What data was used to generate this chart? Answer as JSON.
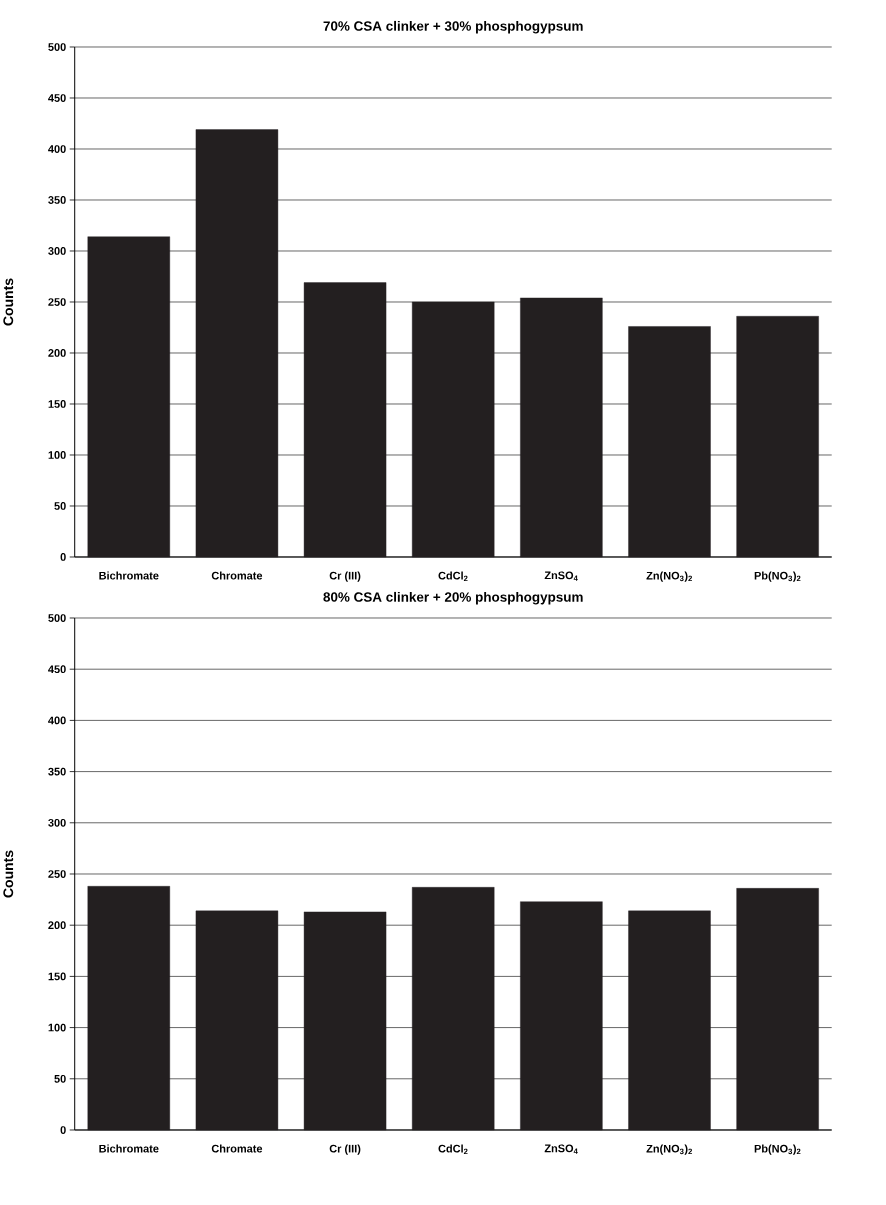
{
  "chart_data": [
    {
      "type": "bar",
      "title": "70% CSA clinker + 30% phosphogypsum",
      "ylabel": "Counts",
      "categories": [
        "Bichromate",
        "Chromate",
        "Cr (III)",
        "CdCl$_{2}$",
        "ZnSO$_{4}$",
        "Zn(NO$_{3}$)$_{2}$",
        "Pb(NO$_{3}$)$_{2}$"
      ],
      "values": [
        314,
        419,
        269,
        250,
        254,
        226,
        236
      ],
      "color": "#231f20",
      "ylim": [
        0,
        500
      ],
      "yticks": [
        0,
        50,
        100,
        150,
        200,
        250,
        300,
        350,
        400,
        450,
        500
      ],
      "grid": "y"
    },
    {
      "type": "bar",
      "title": "80% CSA clinker + 20% phosphogypsum",
      "ylabel": "Counts",
      "categories": [
        "Bichromate",
        "Chromate",
        "Cr (III)",
        "CdCl$_{2}$",
        "ZnSO$_{4}$",
        "Zn(NO$_{3}$)$_{2}$",
        "Pb(NO$_{3}$)$_{2}$"
      ],
      "values": [
        238,
        214,
        213,
        237,
        223,
        214,
        236
      ],
      "color": "#231f20",
      "ylim": [
        0,
        500
      ],
      "yticks": [
        0,
        50,
        100,
        150,
        200,
        250,
        300,
        350,
        400,
        450,
        500
      ],
      "grid": "y"
    }
  ]
}
